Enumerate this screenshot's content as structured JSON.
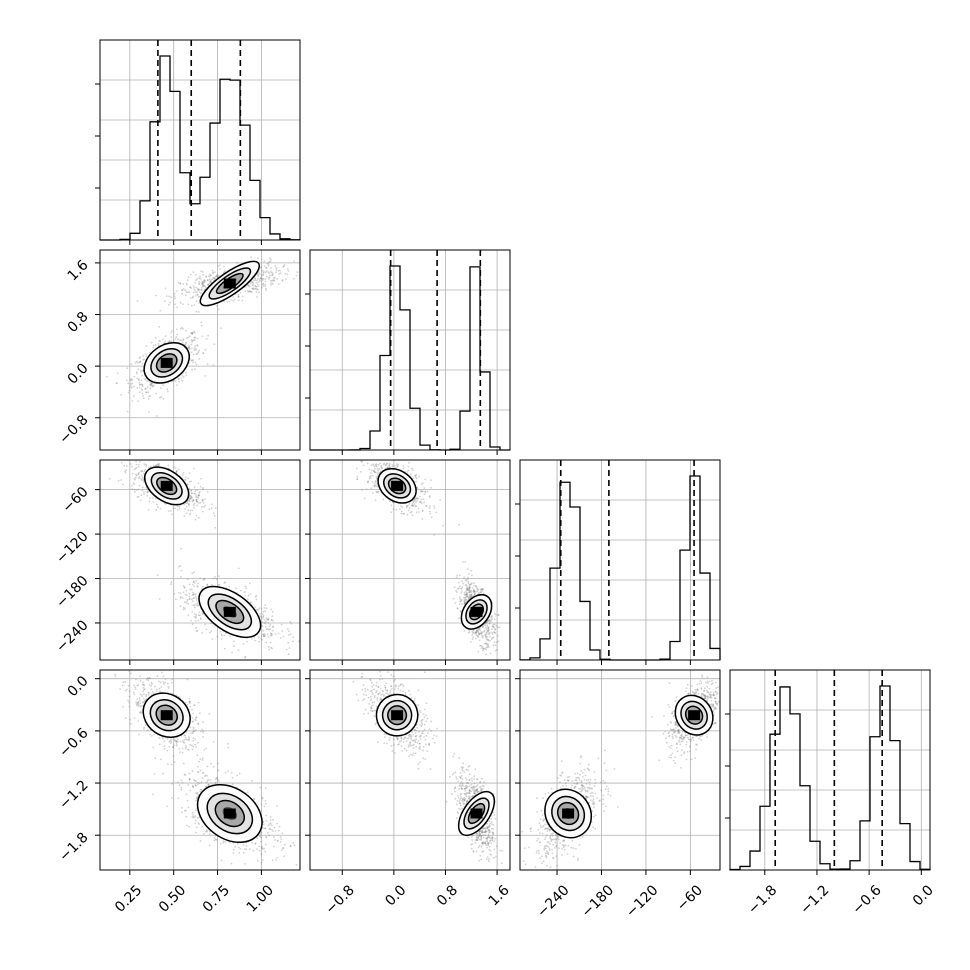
{
  "chart_data": {
    "type": "corner",
    "grid": true,
    "diagonal_histogram_color": "#000000",
    "scatter_color": "#7f7f7f",
    "contour_color": "#000000",
    "parameters": [
      {
        "range": [
          0.08,
          1.22
        ],
        "ticks": [
          0.25,
          0.5,
          0.75,
          1.0
        ],
        "tick_labels": [
          "0.25",
          "0.50",
          "0.75",
          "1.00"
        ],
        "quantiles": [
          0.41,
          0.6,
          0.88
        ],
        "modes": [
          {
            "center": 0.46,
            "sd": 0.07,
            "weight": 1.0
          },
          {
            "center": 0.82,
            "sd": 0.1,
            "weight": 0.9
          }
        ]
      },
      {
        "range": [
          -1.3,
          1.8
        ],
        "ticks": [
          -0.8,
          0.0,
          0.8,
          1.6
        ],
        "tick_labels": [
          "−0.8",
          "0.0",
          "0.8",
          "1.6"
        ],
        "quantiles": [
          -0.05,
          0.67,
          1.34
        ],
        "modes": [
          {
            "center": 0.05,
            "sd": 0.16,
            "weight": 1.0
          },
          {
            "center": 1.28,
            "sd": 0.1,
            "weight": 1.0
          }
        ]
      },
      {
        "range": [
          -290,
          -20
        ],
        "ticks": [
          -240,
          -180,
          -120,
          -60
        ],
        "tick_labels": [
          "−240",
          "−180",
          "−120",
          "−60"
        ],
        "quantiles": [
          -235,
          -170,
          -55
        ],
        "modes": [
          {
            "center": -225,
            "sd": 15,
            "weight": 1.0
          },
          {
            "center": -55,
            "sd": 12,
            "weight": 1.0
          }
        ]
      },
      {
        "range": [
          -2.2,
          0.1
        ],
        "ticks": [
          -1.8,
          -1.2,
          -0.6,
          0.0
        ],
        "tick_labels": [
          "−1.8",
          "−1.2",
          "−0.6",
          "0.0"
        ],
        "quantiles": [
          -1.68,
          -1.0,
          -0.45
        ],
        "modes": [
          {
            "center": -1.55,
            "sd": 0.17,
            "weight": 1.0
          },
          {
            "center": -0.42,
            "sd": 0.14,
            "weight": 1.0
          }
        ]
      }
    ],
    "clusters": [
      {
        "means": [
          0.46,
          0.05,
          -55,
          -0.42
        ],
        "sds": [
          0.07,
          0.16,
          12,
          0.14
        ]
      },
      {
        "means": [
          0.82,
          1.28,
          -225,
          -1.55
        ],
        "sds": [
          0.1,
          0.1,
          15,
          0.17
        ]
      }
    ]
  }
}
